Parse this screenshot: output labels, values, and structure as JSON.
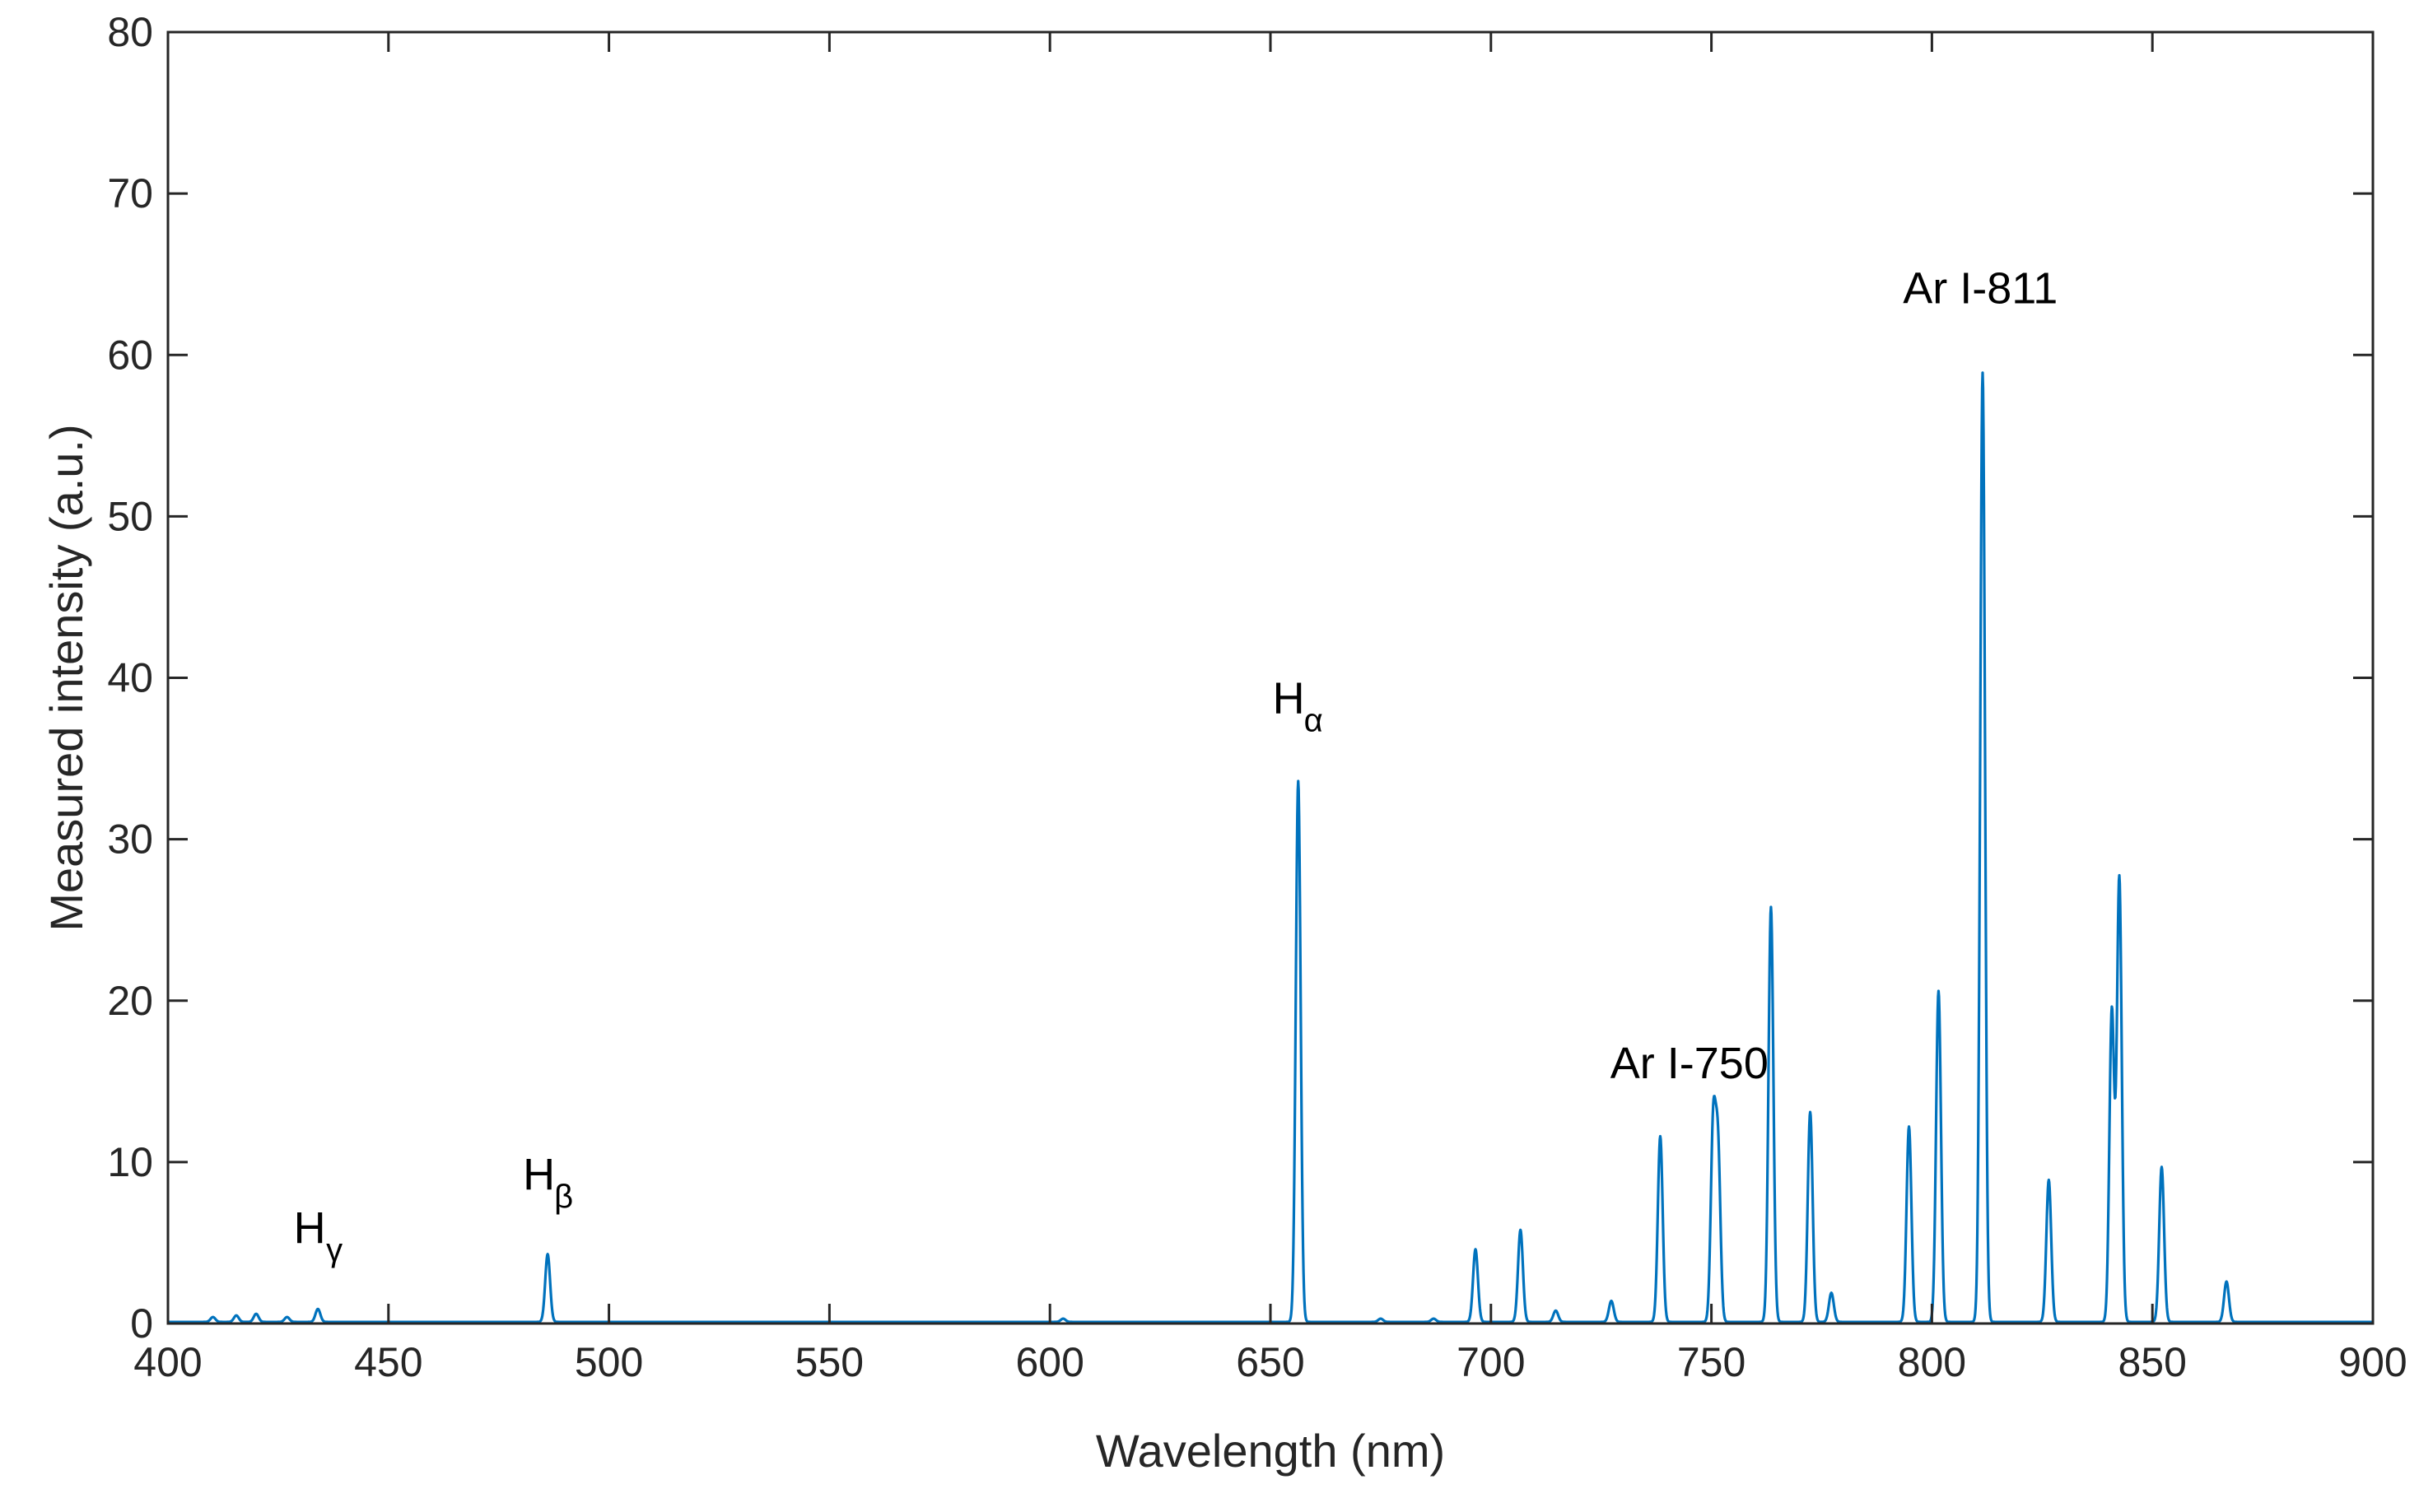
{
  "chart_data": {
    "type": "line",
    "title": "",
    "xlabel": "Wavelength (nm)",
    "ylabel": "Measured intensity (a.u.)",
    "xlim": [
      400,
      900
    ],
    "ylim": [
      0,
      80
    ],
    "grid": false,
    "line_color": "#0072BD",
    "axis_color": "#262626",
    "x_ticks": [
      400,
      450,
      500,
      550,
      600,
      650,
      700,
      750,
      800,
      850,
      900
    ],
    "y_ticks": [
      0,
      10,
      20,
      30,
      40,
      50,
      60,
      70,
      80
    ],
    "baseline": 0.1,
    "peaks": [
      {
        "x": 410.2,
        "y": 0.3
      },
      {
        "x": 415.5,
        "y": 0.4
      },
      {
        "x": 420.0,
        "y": 0.5
      },
      {
        "x": 427.0,
        "y": 0.3
      },
      {
        "x": 434.0,
        "y": 0.8
      },
      {
        "x": 486.1,
        "y": 4.2
      },
      {
        "x": 603.0,
        "y": 0.2
      },
      {
        "x": 656.3,
        "y": 33.5
      },
      {
        "x": 675.0,
        "y": 0.2
      },
      {
        "x": 687.0,
        "y": 0.2
      },
      {
        "x": 696.5,
        "y": 4.5
      },
      {
        "x": 706.7,
        "y": 5.7
      },
      {
        "x": 714.7,
        "y": 0.7
      },
      {
        "x": 727.3,
        "y": 1.3
      },
      {
        "x": 738.4,
        "y": 11.5
      },
      {
        "x": 750.4,
        "y": 12.0
      },
      {
        "x": 751.5,
        "y": 10.5
      },
      {
        "x": 763.5,
        "y": 25.7
      },
      {
        "x": 772.4,
        "y": 13.0
      },
      {
        "x": 777.2,
        "y": 1.8
      },
      {
        "x": 794.8,
        "y": 12.1
      },
      {
        "x": 801.5,
        "y": 20.5
      },
      {
        "x": 811.5,
        "y": 58.8
      },
      {
        "x": 826.5,
        "y": 8.8
      },
      {
        "x": 840.8,
        "y": 19.3
      },
      {
        "x": 842.5,
        "y": 27.5
      },
      {
        "x": 852.1,
        "y": 9.6
      },
      {
        "x": 866.8,
        "y": 2.5
      }
    ],
    "annotations": [
      {
        "label": "H",
        "sub": "γ",
        "x": 434,
        "y": 5
      },
      {
        "label": "H",
        "sub": "β",
        "x": 486,
        "y": 8.3
      },
      {
        "label": "H",
        "sub": "α",
        "x": 656,
        "y": 37.8
      },
      {
        "label": "Ar I-750",
        "sub": "",
        "x": 745,
        "y": 15.2
      },
      {
        "label": "Ar I-811",
        "sub": "",
        "x": 811,
        "y": 63.2
      }
    ]
  }
}
